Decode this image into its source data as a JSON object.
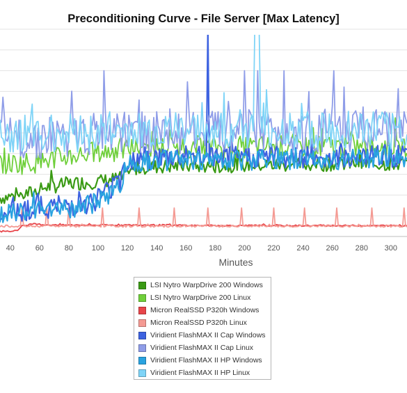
{
  "chart_data": {
    "type": "line",
    "title": "Preconditioning Curve - File Server [Max Latency]",
    "xlabel": "Minutes",
    "ylabel": "",
    "x_ticks": [
      "40",
      "60",
      "80",
      "100",
      "120",
      "140",
      "160",
      "180",
      "200",
      "220",
      "240",
      "260",
      "280",
      "300"
    ],
    "xlim": [
      33,
      311
    ],
    "ylim": [
      0,
      400
    ],
    "y_gridlines": [
      0,
      40,
      80,
      120,
      160,
      200,
      240,
      280,
      320,
      360,
      400
    ],
    "grid": "horizontal",
    "legend": "bottom",
    "series": [
      {
        "name": "LSI Nytro WarpDrive 200 Windows",
        "color": "#3a9a14",
        "x": [
          33,
          48,
          55,
          64,
          72,
          80,
          90,
          100,
          110,
          118,
          125,
          140,
          160,
          180,
          200,
          220,
          240,
          260,
          280,
          300,
          311
        ],
        "values": [
          75,
          80,
          85,
          95,
          98,
          102,
          104,
          106,
          110,
          113,
          132,
          135,
          136,
          136,
          138,
          138,
          139,
          140,
          140,
          140,
          140
        ],
        "noise": 14
      },
      {
        "name": "LSI Nytro WarpDrive 200 Linux",
        "color": "#6fcf3a",
        "x": [
          33,
          50,
          60,
          70,
          80,
          90,
          100,
          110,
          120,
          130,
          150,
          170,
          190,
          210,
          230,
          250,
          270,
          290,
          311
        ],
        "values": [
          140,
          142,
          145,
          150,
          155,
          160,
          162,
          165,
          170,
          172,
          172,
          173,
          173,
          173,
          174,
          174,
          174,
          175,
          175
        ],
        "noise": 22
      },
      {
        "name": "Micron RealSSD P320h Windows",
        "color": "#e8454a",
        "x": [
          33,
          40,
          44,
          46,
          48,
          55,
          70,
          100,
          140,
          180,
          220,
          260,
          311
        ],
        "values": [
          10,
          10,
          12,
          14,
          20,
          24,
          22,
          22,
          22,
          21,
          21,
          21,
          21
        ],
        "noise": 1.5
      },
      {
        "name": "Micron RealSSD P320h Linux",
        "color": "#f49a93",
        "x": [
          33,
          311
        ],
        "values": [
          20,
          20
        ],
        "noise": 2,
        "spikes_x": [
          48,
          65,
          80,
          103,
          128,
          152,
          175,
          198,
          220,
          241,
          263,
          287,
          309
        ],
        "spike_height": 55
      },
      {
        "name": "Viridient FlashMAX II Cap Windows",
        "color": "#3d62e0",
        "x": [
          33,
          50,
          60,
          80,
          95,
          105,
          115,
          120,
          130,
          140,
          160,
          180,
          200,
          220,
          240,
          260,
          280,
          300,
          311
        ],
        "values": [
          47,
          52,
          56,
          60,
          66,
          84,
          110,
          148,
          152,
          152,
          153,
          153,
          153,
          154,
          154,
          154,
          155,
          155,
          155
        ],
        "noise": 22,
        "spikes_x": [
          175
        ],
        "spike_height": 400
      },
      {
        "name": "Viridient FlashMAX II Cap Linux",
        "color": "#8f9de8",
        "x": [
          33,
          60,
          90,
          120,
          150,
          180,
          210,
          240,
          270,
          311
        ],
        "values": [
          190,
          192,
          196,
          200,
          202,
          203,
          203,
          204,
          204,
          205
        ],
        "noise": 42,
        "spikes_x": [
          104,
          200,
          209,
          227,
          261
        ],
        "spike_height": 320
      },
      {
        "name": "Viridient FlashMAX II HP Windows",
        "color": "#2aa3e0",
        "x": [
          33,
          50,
          60,
          80,
          95,
          105,
          115,
          120,
          130,
          140,
          160,
          180,
          200,
          220,
          240,
          260,
          280,
          300,
          311
        ],
        "values": [
          40,
          45,
          50,
          55,
          60,
          78,
          100,
          140,
          146,
          146,
          147,
          148,
          148,
          148,
          149,
          149,
          150,
          150,
          150
        ],
        "noise": 20
      },
      {
        "name": "Viridient FlashMAX II HP Linux",
        "color": "#7fd4f7",
        "x": [
          33,
          60,
          90,
          120,
          150,
          180,
          210,
          240,
          270,
          311
        ],
        "values": [
          200,
          200,
          201,
          202,
          202,
          203,
          203,
          203,
          204,
          204
        ],
        "noise": 38,
        "spikes_x": [
          207,
          208,
          209,
          210
        ],
        "spike_height": 400
      }
    ]
  }
}
